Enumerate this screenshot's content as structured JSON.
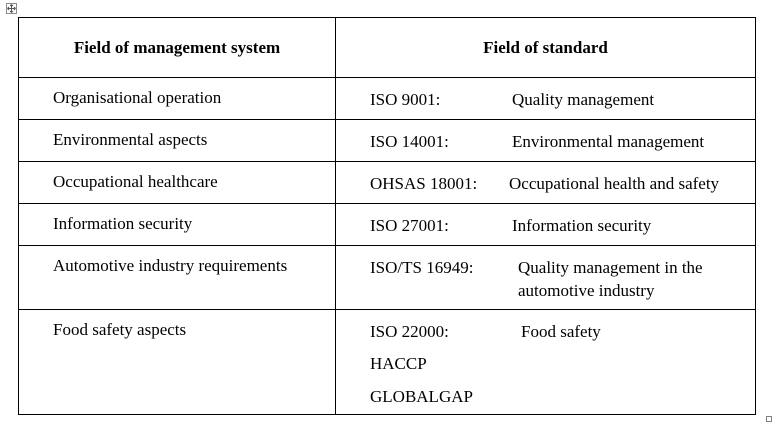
{
  "table": {
    "headers": [
      "Field of management system",
      "Field of standard"
    ],
    "rows": [
      {
        "field": "Organisational operation",
        "code": "ISO 9001:",
        "standard": "Quality management",
        "additional": []
      },
      {
        "field": "Environmental aspects",
        "code": "ISO 14001:",
        "standard": "Environmental management",
        "additional": []
      },
      {
        "field": "Occupational healthcare",
        "code": "OHSAS 18001:",
        "standard": "Occupational health and safety",
        "additional": []
      },
      {
        "field": "Information security",
        "code": "ISO 27001:",
        "standard": "Information security",
        "additional": []
      },
      {
        "field": "Automotive industry requirements",
        "code": "ISO/TS 16949:",
        "standard": "Quality management in the automotive industry",
        "additional": []
      },
      {
        "field": "Food safety aspects",
        "code": "ISO 22000:",
        "standard": "Food safety",
        "additional": [
          "HACCP",
          "GLOBALGAP"
        ]
      }
    ]
  }
}
